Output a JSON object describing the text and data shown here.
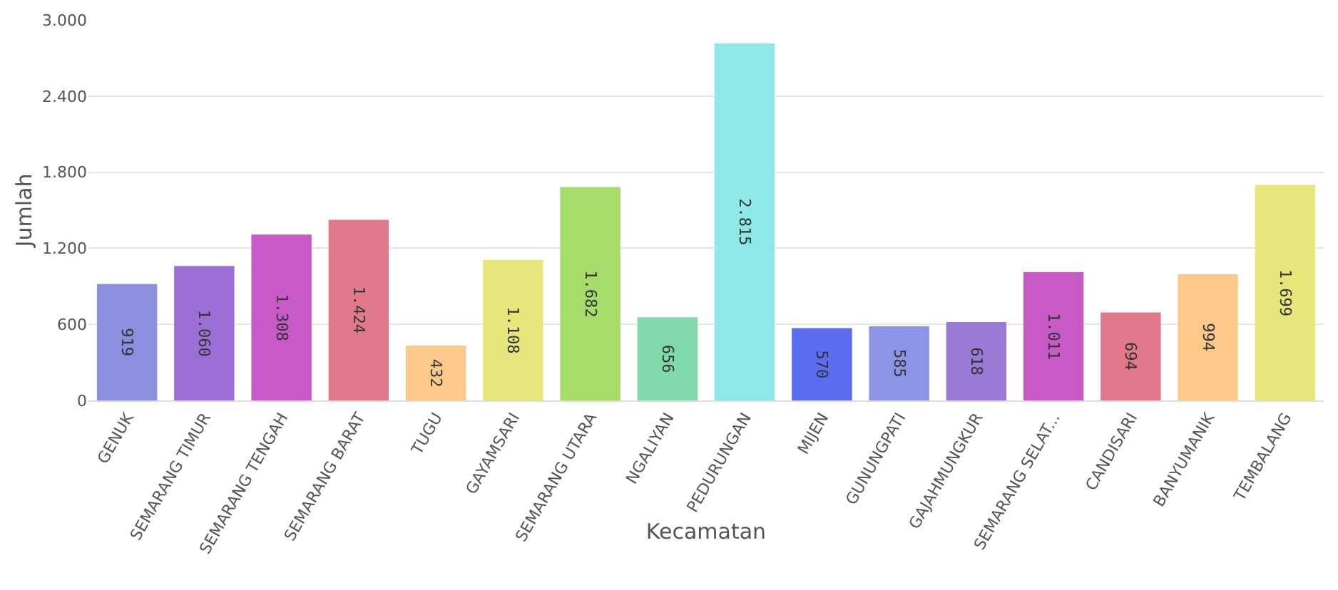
{
  "chart_data": {
    "type": "bar",
    "xlabel": "Kecamatan",
    "ylabel": "Jumlah",
    "categories": [
      "GENUK",
      "SEMARANG TIMUR",
      "SEMARANG TENGAH",
      "SEMARANG BARAT",
      "TUGU",
      "GAYAMSARI",
      "SEMARANG UTARA",
      "NGALIYAN",
      "PEDURUNGAN",
      "MIJEN",
      "GUNUNGPATI",
      "GAJAHMUNGKUR",
      "SEMARANG SELAT...",
      "CANDISARI",
      "BANYUMANIK",
      "TEMBALANG"
    ],
    "values": [
      919,
      1060,
      1308,
      1424,
      432,
      1108,
      1682,
      656,
      2815,
      570,
      585,
      618,
      1011,
      694,
      994,
      1699
    ],
    "value_labels": [
      "919",
      "1.060",
      "1.308",
      "1.424",
      "432",
      "1.108",
      "1.682",
      "656",
      "2.815",
      "570",
      "585",
      "618",
      "1.011",
      "694",
      "994",
      "1.699"
    ],
    "colors": [
      "#8b8fdf",
      "#9b6fd6",
      "#c85ac8",
      "#e07a8a",
      "#fcc98a",
      "#e6e67a",
      "#a6dd6a",
      "#7fd9a8",
      "#8ee8e8",
      "#5b6cf0",
      "#8b94e6",
      "#9b7ad6",
      "#c85ac8",
      "#e07a8a",
      "#fcc98a",
      "#e6e67a"
    ],
    "ylim": [
      0,
      3000
    ],
    "yticks": [
      0,
      {
        "value": 600,
        "label": "600"
      },
      {
        "value": 1200,
        "label": "1.200"
      },
      {
        "value": 1800,
        "label": "1.800"
      },
      {
        "value": 2400,
        "label": "2.400"
      },
      {
        "value": 3000,
        "label": "3.000"
      }
    ],
    "grid": "y",
    "legend": false
  }
}
